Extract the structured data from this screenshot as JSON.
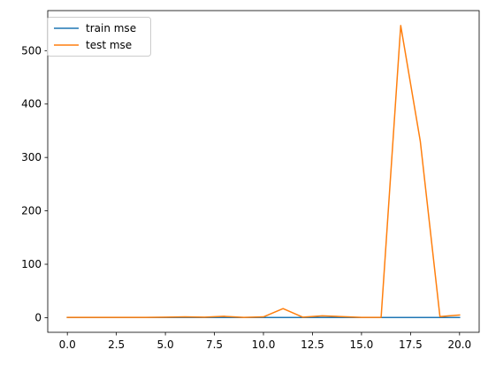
{
  "chart_data": {
    "type": "line",
    "title": "",
    "xlabel": "",
    "ylabel": "",
    "xlim": [
      -1,
      21
    ],
    "ylim": [
      -27.4,
      575
    ],
    "x_ticks": [
      0.0,
      2.5,
      5.0,
      7.5,
      10.0,
      12.5,
      15.0,
      17.5,
      20.0
    ],
    "x_tick_labels": [
      "0.0",
      "2.5",
      "5.0",
      "7.5",
      "10.0",
      "12.5",
      "15.0",
      "17.5",
      "20.0"
    ],
    "y_ticks": [
      0,
      100,
      200,
      300,
      400,
      500
    ],
    "y_tick_labels": [
      "0",
      "100",
      "200",
      "300",
      "400",
      "500"
    ],
    "grid": false,
    "legend_position": "upper-left",
    "x": [
      0,
      1,
      2,
      3,
      4,
      5,
      6,
      7,
      8,
      9,
      10,
      11,
      12,
      13,
      14,
      15,
      16,
      17,
      18,
      19,
      20
    ],
    "series": [
      {
        "name": "train mse",
        "color": "#1f77b4",
        "values": [
          0.3,
          0.3,
          0.3,
          0.3,
          0.3,
          0.3,
          0.3,
          0.3,
          0.3,
          0.3,
          0.3,
          0.3,
          0.3,
          0.3,
          0.3,
          0.3,
          0.3,
          0.3,
          0.3,
          0.3,
          0.3
        ]
      },
      {
        "name": "test mse",
        "color": "#ff7f0e",
        "values": [
          0.5,
          0.5,
          0.5,
          0.5,
          0.5,
          1.0,
          1.5,
          1.0,
          2.5,
          0.5,
          1.5,
          17.0,
          1.0,
          3.5,
          2.0,
          0.5,
          0.5,
          547.0,
          330.0,
          2.0,
          5.0
        ]
      }
    ]
  }
}
